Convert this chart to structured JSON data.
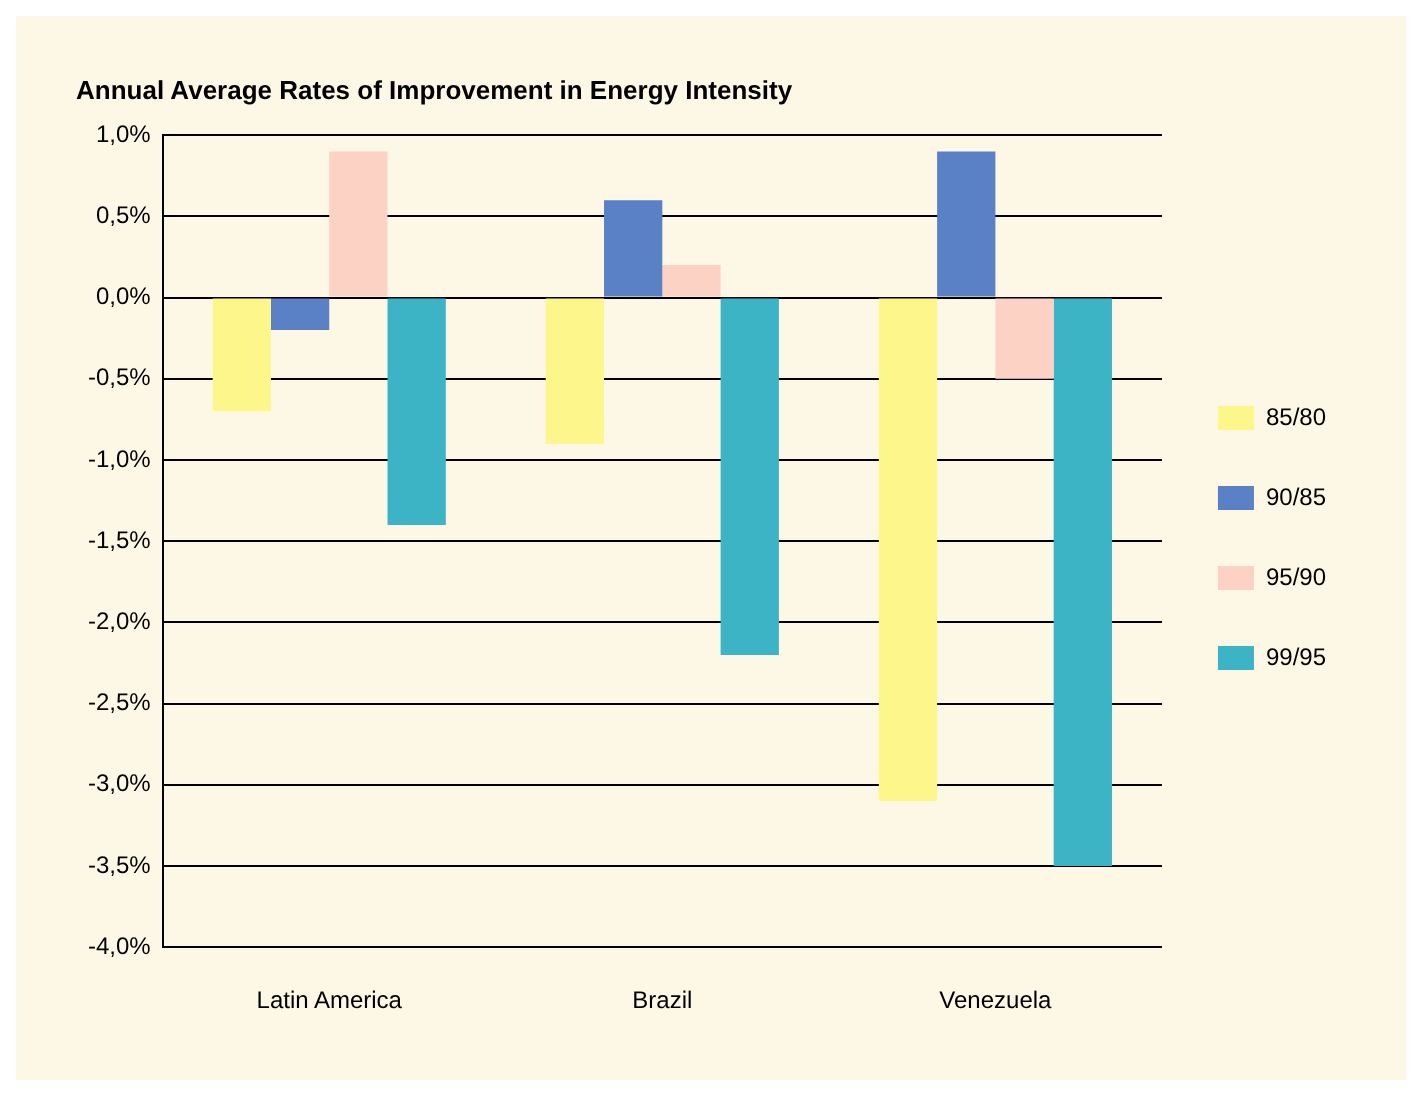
{
  "chart_data": {
    "type": "bar",
    "title": "Annual Average Rates of Improvement in Energy Intensity",
    "categories": [
      "Latin America",
      "Brazil",
      "Venezuela"
    ],
    "series": [
      {
        "name": "85/80",
        "color": "#fdf68a",
        "values": [
          -0.7,
          -0.9,
          -3.1
        ]
      },
      {
        "name": "90/85",
        "color": "#5a80c6",
        "values": [
          -0.2,
          0.6,
          0.9
        ]
      },
      {
        "name": "95/90",
        "color": "#fcd2c4",
        "values": [
          0.9,
          0.2,
          -0.5
        ]
      },
      {
        "name": "99/95",
        "color": "#3cb4c6",
        "values": [
          -1.4,
          -2.2,
          -3.5
        ]
      }
    ],
    "ylim": [
      -4,
      1
    ],
    "yticks": [
      {
        "value": 1,
        "label": "1,0%"
      },
      {
        "value": 0.5,
        "label": "0,5%"
      },
      {
        "value": 0,
        "label": "0,0%"
      },
      {
        "value": -0.5,
        "label": "-0,5%"
      },
      {
        "value": -1,
        "label": "-1,0%"
      },
      {
        "value": -1.5,
        "label": "-1,5%"
      },
      {
        "value": -2,
        "label": "-2,0%"
      },
      {
        "value": -2.5,
        "label": "-2,5%"
      },
      {
        "value": -3,
        "label": "-3,0%"
      },
      {
        "value": -3.5,
        "label": "-3,5%"
      },
      {
        "value": -4,
        "label": "-4,0%"
      }
    ],
    "grid": "y",
    "legend": "right"
  }
}
